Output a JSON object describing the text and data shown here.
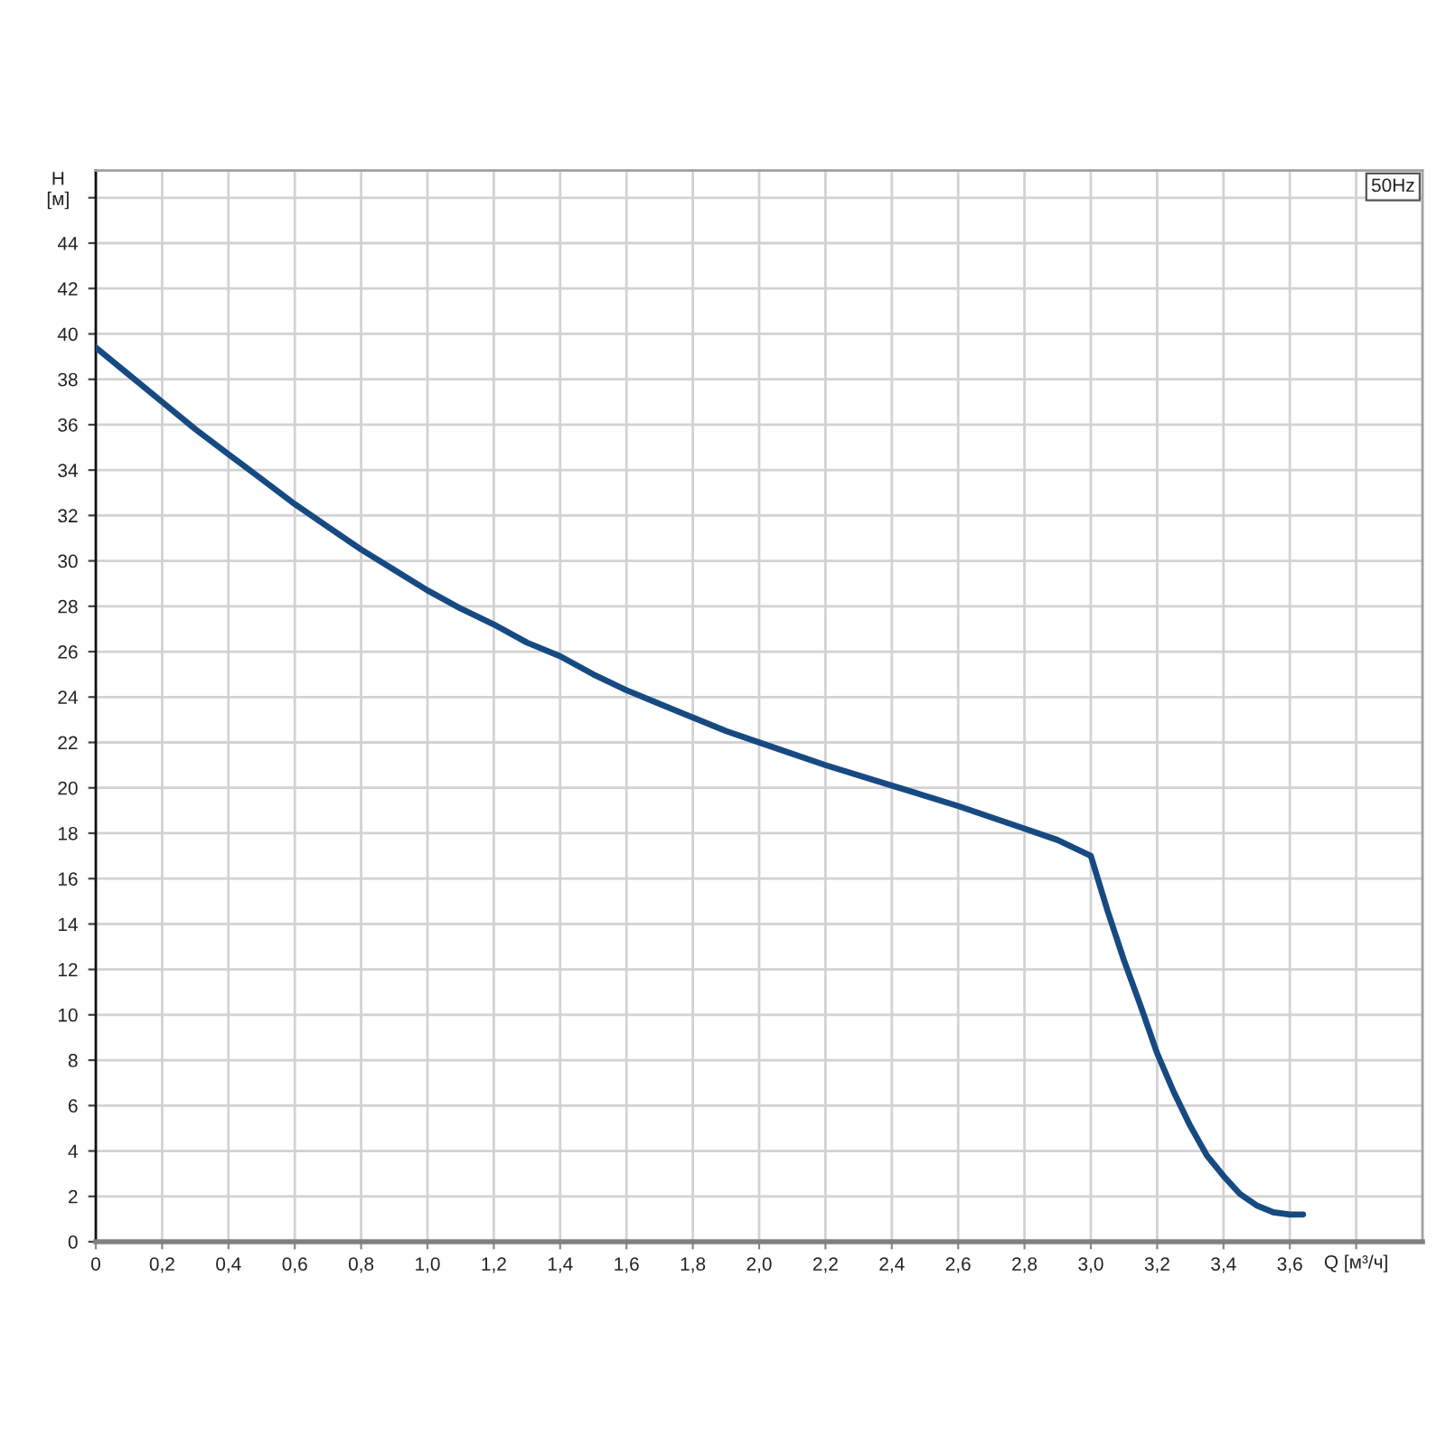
{
  "chart_data": {
    "type": "line",
    "xlabel": "Q [м³/ч]",
    "ylabel": "H [м]",
    "annotations": [
      "50Hz"
    ],
    "x": [
      0,
      0.1,
      0.2,
      0.3,
      0.4,
      0.5,
      0.6,
      0.7,
      0.8,
      0.9,
      1.0,
      1.1,
      1.2,
      1.3,
      1.4,
      1.5,
      1.6,
      1.7,
      1.8,
      1.9,
      2.0,
      2.2,
      2.4,
      2.6,
      2.8,
      2.9,
      3.0,
      3.05,
      3.1,
      3.15,
      3.2,
      3.25,
      3.3,
      3.35,
      3.4,
      3.45,
      3.5,
      3.55,
      3.6,
      3.64
    ],
    "series": [
      {
        "color": "#174a82",
        "values": [
          39.4,
          38.2,
          37.0,
          35.8,
          34.7,
          33.6,
          32.5,
          31.5,
          30.5,
          29.6,
          28.7,
          27.9,
          27.2,
          26.4,
          25.8,
          25.0,
          24.3,
          23.7,
          23.1,
          22.5,
          22.0,
          21.0,
          20.1,
          19.2,
          18.2,
          17.7,
          17.0,
          14.6,
          12.4,
          10.4,
          8.3,
          6.6,
          5.1,
          3.8,
          2.9,
          2.1,
          1.6,
          1.3,
          1.2,
          1.2
        ]
      }
    ],
    "xlim": [
      0,
      4.0
    ],
    "ylim": [
      0,
      47.2
    ],
    "xticks": [
      0,
      {
        "value": 0.2,
        "label": "0,2"
      },
      {
        "value": 0.4,
        "label": "0,4"
      },
      {
        "value": 0.6,
        "label": "0,6"
      },
      {
        "value": 0.8,
        "label": "0,8"
      },
      {
        "value": 1.0,
        "label": "1,0"
      },
      {
        "value": 1.2,
        "label": "1,2"
      },
      {
        "value": 1.4,
        "label": "1,4"
      },
      {
        "value": 1.6,
        "label": "1,6"
      },
      {
        "value": 1.8,
        "label": "1,8"
      },
      {
        "value": 2.0,
        "label": "2,0"
      },
      {
        "value": 2.2,
        "label": "2,2"
      },
      {
        "value": 2.4,
        "label": "2,4"
      },
      {
        "value": 2.6,
        "label": "2,6"
      },
      {
        "value": 2.8,
        "label": "2,8"
      },
      {
        "value": 3.0,
        "label": "3,0"
      },
      {
        "value": 3.2,
        "label": "3,2"
      },
      {
        "value": 3.4,
        "label": "3,4"
      },
      {
        "value": 3.6,
        "label": "3,6"
      },
      {
        "value": 3.8,
        "label": null
      }
    ],
    "yticks": [
      0,
      2,
      4,
      6,
      8,
      10,
      12,
      14,
      16,
      18,
      20,
      22,
      24,
      26,
      28,
      30,
      32,
      34,
      36,
      38,
      40,
      42,
      44,
      {
        "value": 46,
        "label": null
      }
    ],
    "grid": true,
    "marker": "none",
    "line_style": "solid"
  }
}
